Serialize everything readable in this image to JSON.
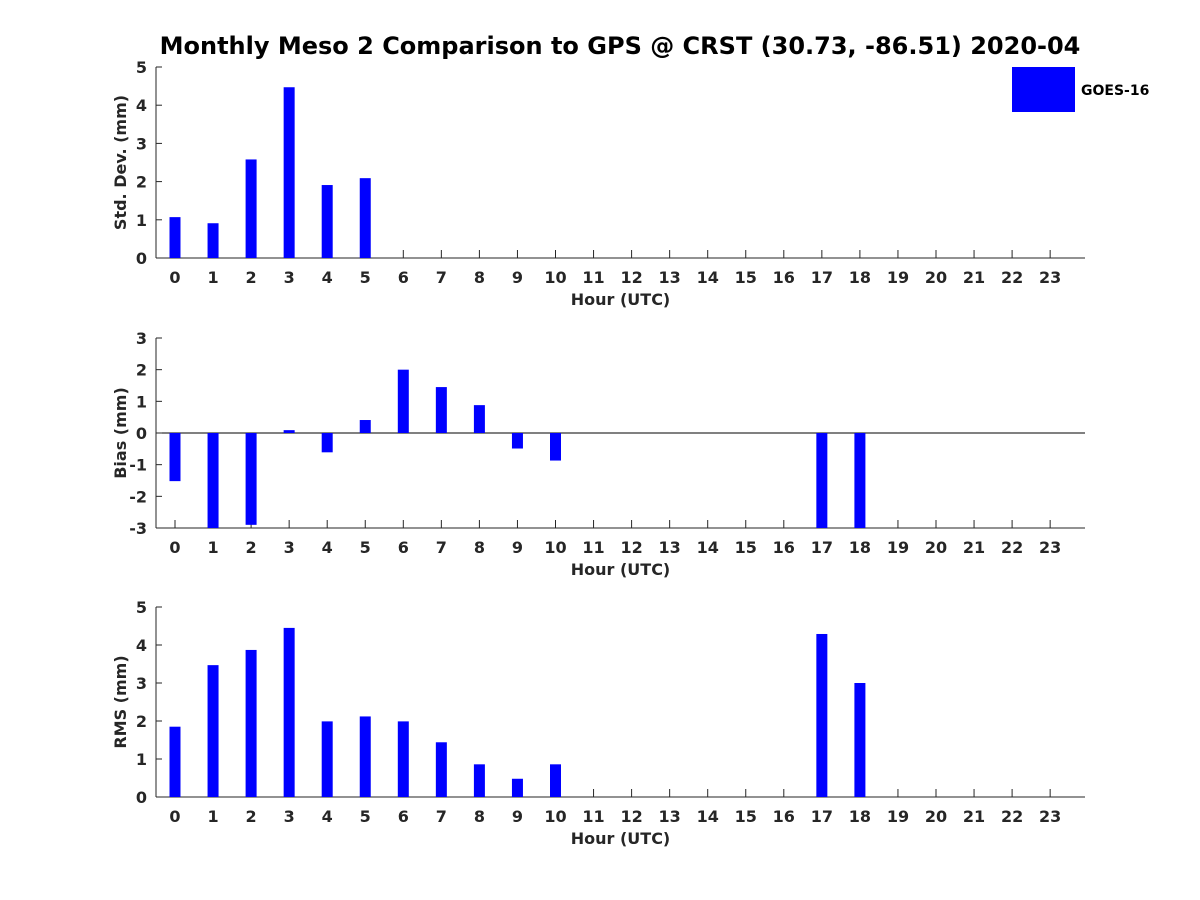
{
  "figure": {
    "title": "Monthly Meso 2 Comparison to GPS @ CRST (30.73, -86.51) 2020-04"
  },
  "legend": {
    "label": "GOES-16",
    "color": "#0000ff",
    "placement": "top-right"
  },
  "chart_data": [
    {
      "type": "bar",
      "xlabel": "Hour (UTC)",
      "ylabel": "Std. Dev. (mm)",
      "ylim": [
        0,
        5
      ],
      "yticks": [
        0,
        1,
        2,
        3,
        4,
        5
      ],
      "categories": [
        "0",
        "1",
        "2",
        "3",
        "4",
        "5",
        "6",
        "7",
        "8",
        "9",
        "10",
        "11",
        "12",
        "13",
        "14",
        "15",
        "16",
        "17",
        "18",
        "19",
        "20",
        "21",
        "22",
        "23"
      ],
      "series": [
        {
          "name": "GOES-16",
          "color": "#0000ff",
          "values": [
            1.07,
            0.91,
            2.58,
            4.47,
            1.91,
            2.09,
            null,
            null,
            null,
            null,
            null,
            null,
            null,
            null,
            null,
            null,
            null,
            null,
            null,
            null,
            null,
            null,
            null,
            null
          ]
        }
      ]
    },
    {
      "type": "bar",
      "xlabel": "Hour (UTC)",
      "ylabel": "Bias (mm)",
      "ylim": [
        -3,
        3
      ],
      "yticks": [
        -3,
        -2,
        -1,
        0,
        1,
        2,
        3
      ],
      "categories": [
        "0",
        "1",
        "2",
        "3",
        "4",
        "5",
        "6",
        "7",
        "8",
        "9",
        "10",
        "11",
        "12",
        "13",
        "14",
        "15",
        "16",
        "17",
        "18",
        "19",
        "20",
        "21",
        "22",
        "23"
      ],
      "series": [
        {
          "name": "GOES-16",
          "color": "#0000ff",
          "values": [
            -1.52,
            -3.0,
            -2.9,
            0.09,
            -0.61,
            0.41,
            2.0,
            1.45,
            0.88,
            -0.49,
            -0.87,
            null,
            null,
            null,
            null,
            null,
            null,
            -3.0,
            -3.0,
            null,
            null,
            null,
            null,
            null
          ]
        }
      ]
    },
    {
      "type": "bar",
      "xlabel": "Hour (UTC)",
      "ylabel": "RMS (mm)",
      "ylim": [
        0,
        5
      ],
      "yticks": [
        0,
        1,
        2,
        3,
        4,
        5
      ],
      "categories": [
        "0",
        "1",
        "2",
        "3",
        "4",
        "5",
        "6",
        "7",
        "8",
        "9",
        "10",
        "11",
        "12",
        "13",
        "14",
        "15",
        "16",
        "17",
        "18",
        "19",
        "20",
        "21",
        "22",
        "23"
      ],
      "series": [
        {
          "name": "GOES-16",
          "color": "#0000ff",
          "values": [
            1.85,
            3.47,
            3.87,
            4.45,
            1.99,
            2.12,
            1.99,
            1.44,
            0.86,
            0.48,
            0.86,
            null,
            null,
            null,
            null,
            null,
            null,
            4.29,
            3.0,
            null,
            null,
            null,
            null,
            null
          ]
        }
      ]
    }
  ]
}
